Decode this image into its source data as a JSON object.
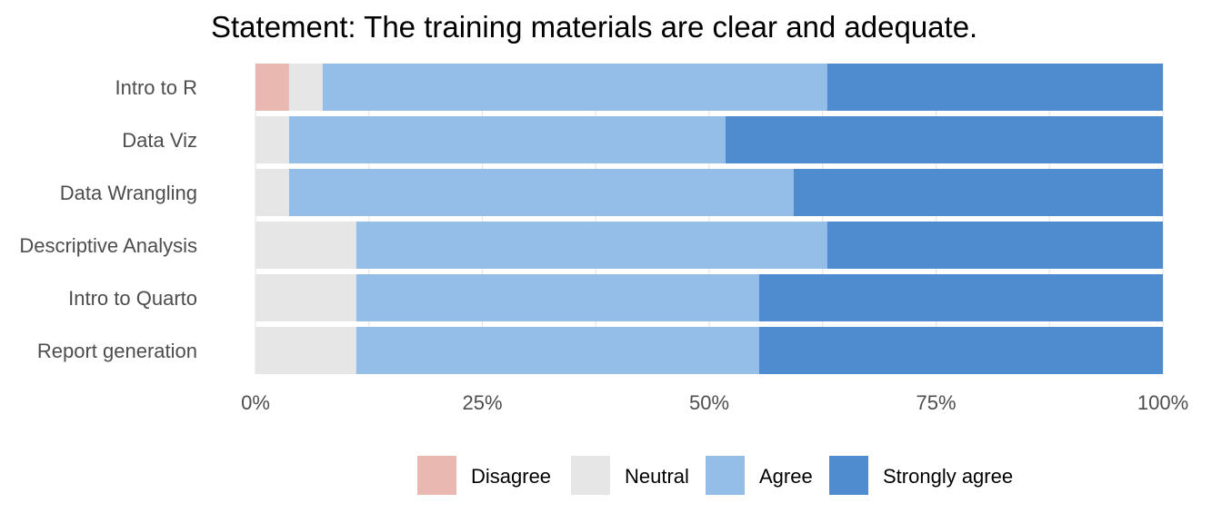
{
  "chart_data": {
    "type": "bar",
    "orientation": "horizontal",
    "stacked": "percent",
    "title": "Statement: The training materials are clear and adequate.",
    "xlabel": "",
    "ylabel": "",
    "categories": [
      "Intro to R",
      "Data Viz",
      "Data Wrangling",
      "Descriptive Analysis",
      "Intro to Quarto",
      "Report generation"
    ],
    "series": [
      {
        "name": "Disagree",
        "color": "#e9b9b1",
        "values": [
          3.7,
          0,
          0,
          0,
          0,
          0
        ]
      },
      {
        "name": "Neutral",
        "color": "#e6e6e6",
        "values": [
          3.7,
          3.7,
          3.7,
          11.1,
          11.1,
          11.1
        ]
      },
      {
        "name": "Agree",
        "color": "#94bde8",
        "values": [
          55.6,
          48.1,
          55.6,
          51.9,
          44.4,
          44.4
        ]
      },
      {
        "name": "Strongly agree",
        "color": "#4f8bcf",
        "values": [
          37.0,
          48.2,
          40.7,
          37.0,
          44.5,
          44.5
        ]
      }
    ],
    "xlim": [
      0,
      100
    ],
    "ticks": [
      0,
      25,
      50,
      75,
      100
    ],
    "tick_labels": [
      "0%",
      "25%",
      "50%",
      "75%",
      "100%"
    ],
    "grid": true,
    "legend": "bottom"
  }
}
